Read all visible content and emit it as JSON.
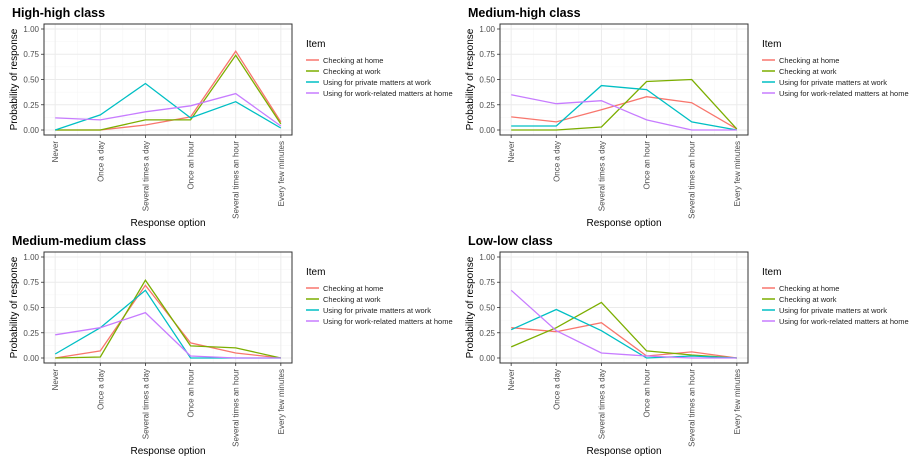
{
  "chart_data": [
    {
      "type": "line",
      "title": "High-high class",
      "xlabel": "Response option",
      "ylabel": "Probability of response",
      "categories": [
        "Never",
        "Once a day",
        "Several times a day",
        "Once an hour",
        "Several times an hour",
        "Every few minutes"
      ],
      "yticks": [
        "0.00",
        "0.25",
        "0.50",
        "0.75",
        "1.00"
      ],
      "ylim": [
        0,
        1
      ],
      "legend_title": "Item",
      "series": [
        {
          "name": "Checking at home",
          "color": "#F8766D",
          "values": [
            0.0,
            0.0,
            0.05,
            0.13,
            0.78,
            0.08
          ]
        },
        {
          "name": "Checking at work",
          "color": "#7CAE00",
          "values": [
            0.0,
            0.0,
            0.1,
            0.1,
            0.74,
            0.06
          ]
        },
        {
          "name": "Using for private matters at work",
          "color": "#00BFC4",
          "values": [
            0.0,
            0.15,
            0.46,
            0.12,
            0.28,
            0.02
          ]
        },
        {
          "name": "Using for work-related matters at home",
          "color": "#C77CFF",
          "values": [
            0.12,
            0.1,
            0.18,
            0.24,
            0.36,
            0.04
          ]
        }
      ]
    },
    {
      "type": "line",
      "title": "Medium-high class",
      "xlabel": "Response option",
      "ylabel": "Probability of response",
      "categories": [
        "Never",
        "Once a day",
        "Several times a day",
        "Once an hour",
        "Several times an hour",
        "Every few minutes"
      ],
      "yticks": [
        "0.00",
        "0.25",
        "0.50",
        "0.75",
        "1.00"
      ],
      "ylim": [
        0,
        1
      ],
      "legend_title": "Item",
      "series": [
        {
          "name": "Checking at home",
          "color": "#F8766D",
          "values": [
            0.13,
            0.08,
            0.2,
            0.33,
            0.27,
            0.01
          ]
        },
        {
          "name": "Checking at work",
          "color": "#7CAE00",
          "values": [
            0.0,
            0.0,
            0.03,
            0.48,
            0.5,
            0.01
          ]
        },
        {
          "name": "Using for private matters at work",
          "color": "#00BFC4",
          "values": [
            0.04,
            0.04,
            0.44,
            0.4,
            0.08,
            0.0
          ]
        },
        {
          "name": "Using for work-related matters at home",
          "color": "#C77CFF",
          "values": [
            0.35,
            0.26,
            0.29,
            0.1,
            0.0,
            0.0
          ]
        }
      ]
    },
    {
      "type": "line",
      "title": "Medium-medium class",
      "xlabel": "Response option",
      "ylabel": "Probability of response",
      "categories": [
        "Never",
        "Once a day",
        "Several times a day",
        "Once an hour",
        "Several times an hour",
        "Every few minutes"
      ],
      "yticks": [
        "0.00",
        "0.25",
        "0.50",
        "0.75",
        "1.00"
      ],
      "ylim": [
        0,
        1
      ],
      "legend_title": "Item",
      "series": [
        {
          "name": "Checking at home",
          "color": "#F8766D",
          "values": [
            0.0,
            0.07,
            0.72,
            0.15,
            0.05,
            0.0
          ]
        },
        {
          "name": "Checking at work",
          "color": "#7CAE00",
          "values": [
            0.0,
            0.01,
            0.77,
            0.12,
            0.1,
            0.0
          ]
        },
        {
          "name": "Using for private matters at work",
          "color": "#00BFC4",
          "values": [
            0.04,
            0.3,
            0.67,
            0.0,
            0.0,
            0.0
          ]
        },
        {
          "name": "Using for work-related matters at home",
          "color": "#C77CFF",
          "values": [
            0.23,
            0.3,
            0.45,
            0.02,
            0.0,
            0.0
          ]
        }
      ]
    },
    {
      "type": "line",
      "title": "Low-low class",
      "xlabel": "Response option",
      "ylabel": "Probability of response",
      "categories": [
        "Never",
        "Once a day",
        "Several times a day",
        "Once an hour",
        "Several times an hour",
        "Every few minutes"
      ],
      "yticks": [
        "0.00",
        "0.25",
        "0.50",
        "0.75",
        "1.00"
      ],
      "ylim": [
        0,
        1
      ],
      "legend_title": "Item",
      "series": [
        {
          "name": "Checking at home",
          "color": "#F8766D",
          "values": [
            0.3,
            0.26,
            0.35,
            0.02,
            0.06,
            0.0
          ]
        },
        {
          "name": "Checking at work",
          "color": "#7CAE00",
          "values": [
            0.11,
            0.3,
            0.55,
            0.07,
            0.03,
            0.0
          ]
        },
        {
          "name": "Using for private matters at work",
          "color": "#00BFC4",
          "values": [
            0.28,
            0.48,
            0.27,
            0.0,
            0.02,
            0.0
          ]
        },
        {
          "name": "Using for work-related matters at home",
          "color": "#C77CFF",
          "values": [
            0.67,
            0.27,
            0.05,
            0.02,
            0.0,
            0.0
          ]
        }
      ]
    }
  ]
}
